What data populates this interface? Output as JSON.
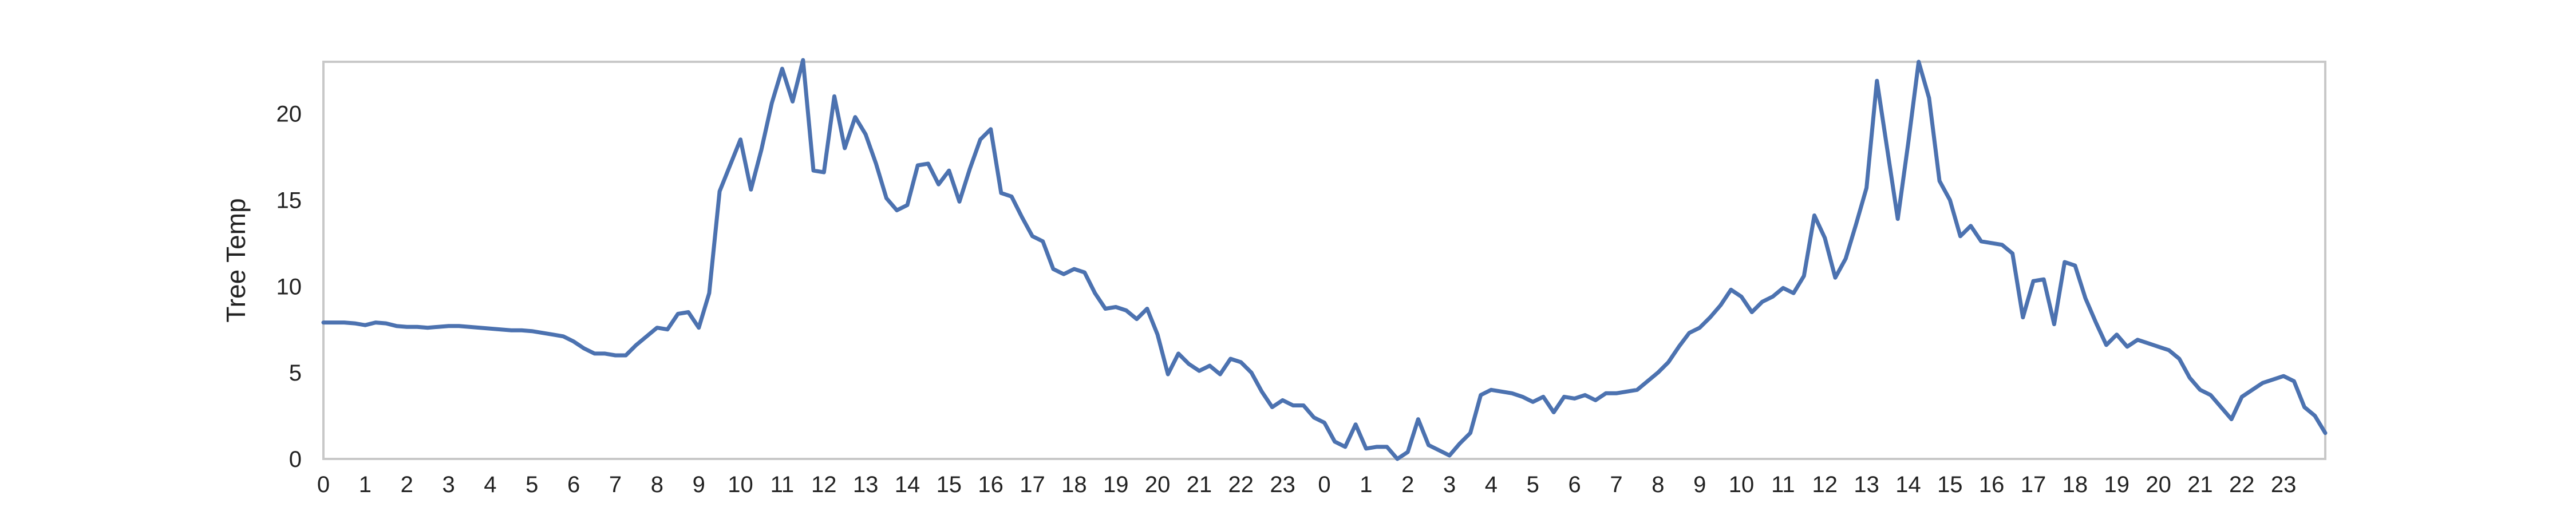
{
  "chart_data": {
    "type": "line",
    "title": "",
    "xlabel": "",
    "ylabel": "Tree Temp",
    "x_tick_labels": [
      "0",
      "1",
      "2",
      "3",
      "4",
      "5",
      "6",
      "7",
      "8",
      "9",
      "10",
      "11",
      "12",
      "13",
      "14",
      "15",
      "16",
      "17",
      "18",
      "19",
      "20",
      "21",
      "22",
      "23",
      "0",
      "1",
      "2",
      "3",
      "4",
      "5",
      "6",
      "7",
      "8",
      "9",
      "10",
      "11",
      "12",
      "13",
      "14",
      "15",
      "16",
      "17",
      "18",
      "19",
      "20",
      "21",
      "22",
      "23"
    ],
    "y_ticks": [
      0,
      5,
      10,
      15,
      20
    ],
    "ylim": [
      0,
      23
    ],
    "grid": false,
    "legend": "none",
    "series": [
      {
        "color": "#4c72b0",
        "step_hours": 0.25,
        "values": [
          7.9,
          7.9,
          7.9,
          7.85,
          7.75,
          7.9,
          7.85,
          7.7,
          7.65,
          7.65,
          7.6,
          7.65,
          7.7,
          7.7,
          7.65,
          7.6,
          7.55,
          7.5,
          7.45,
          7.45,
          7.4,
          7.3,
          7.2,
          7.1,
          6.8,
          6.4,
          6.1,
          6.1,
          6.0,
          6.0,
          6.6,
          7.1,
          7.6,
          7.5,
          8.4,
          8.5,
          7.6,
          9.6,
          15.5,
          17.0,
          18.5,
          15.6,
          17.9,
          20.6,
          22.6,
          20.7,
          23.1,
          16.7,
          16.6,
          21.0,
          18.0,
          19.8,
          18.8,
          17.1,
          15.1,
          14.4,
          14.7,
          17.0,
          17.1,
          15.9,
          16.7,
          14.9,
          16.8,
          18.5,
          19.1,
          15.4,
          15.2,
          14.0,
          12.9,
          12.6,
          11.0,
          10.7,
          11.0,
          10.8,
          9.6,
          8.7,
          8.8,
          8.6,
          8.1,
          8.7,
          7.2,
          4.9,
          6.1,
          5.5,
          5.1,
          5.4,
          4.9,
          5.8,
          5.6,
          5.0,
          3.9,
          3.0,
          3.4,
          3.1,
          3.1,
          2.4,
          2.1,
          1.0,
          0.7,
          2.0,
          0.6,
          0.7,
          0.7,
          0.0,
          0.4,
          2.3,
          0.8,
          0.5,
          0.2,
          0.9,
          1.5,
          3.7,
          4.0,
          3.9,
          3.8,
          3.6,
          3.3,
          3.6,
          2.7,
          3.6,
          3.5,
          3.7,
          3.4,
          3.8,
          3.8,
          3.9,
          4.0,
          4.5,
          5.0,
          5.6,
          6.5,
          7.3,
          7.6,
          8.2,
          8.9,
          9.8,
          9.4,
          8.5,
          9.1,
          9.4,
          9.9,
          9.6,
          10.6,
          14.1,
          12.8,
          10.5,
          11.6,
          13.6,
          15.7,
          21.9,
          17.9,
          13.9,
          18.3,
          23.0,
          20.9,
          16.1,
          15.0,
          12.9,
          13.5,
          12.6,
          12.5,
          12.4,
          11.9,
          8.2,
          10.3,
          10.4,
          7.8,
          11.4,
          11.2,
          9.3,
          7.9,
          6.6,
          7.2,
          6.5,
          6.9,
          6.7,
          6.5,
          6.3,
          5.8,
          4.7,
          4.0,
          3.7,
          3.0,
          2.3,
          3.6,
          4.0,
          4.4,
          4.6,
          4.8,
          4.5,
          3.0,
          2.5,
          1.5
        ]
      }
    ]
  }
}
